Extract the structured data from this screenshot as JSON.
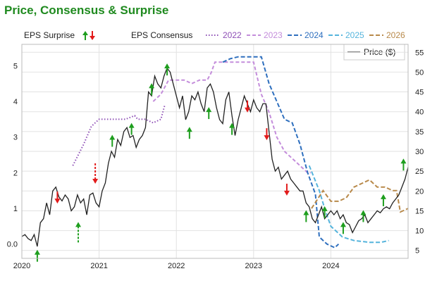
{
  "title": "Price, Consensus & Surprise",
  "legend": {
    "eps_surprise_label": "EPS Surprise",
    "eps_consensus_label": "EPS Consensus",
    "price_label": "Price ($)"
  },
  "colors": {
    "title": "#1f8a1f",
    "price": "#222222",
    "up_arrow": "#1e9e1e",
    "down_arrow": "#e21b1b",
    "y2022": "#8e4fb6",
    "y2023": "#c48ddb",
    "y2024": "#2e6fbe",
    "y2025": "#55b4dc",
    "y2026": "#b8894a"
  },
  "chart_data": {
    "type": "line",
    "title": "Price, Consensus & Surprise",
    "x_ticks": [
      "2020",
      "2021",
      "2022",
      "2023",
      "2024"
    ],
    "xlim": [
      2020.0,
      2025.0
    ],
    "y_left_label": "",
    "y_left_ticks": [
      "0.0",
      "1",
      "2",
      "3",
      "4",
      "5"
    ],
    "y_left_lim": [
      -0.4,
      5.6
    ],
    "y_right_label": "Price ($)",
    "y_right_ticks": [
      "5",
      "10",
      "15",
      "20",
      "25",
      "30",
      "35",
      "40",
      "45",
      "50",
      "55"
    ],
    "y_right_lim": [
      3,
      57
    ],
    "grid": true,
    "legend_position": "top",
    "price": {
      "name": "Price ($)",
      "axis": "right",
      "x": [
        2020.0,
        2020.04,
        2020.08,
        2020.12,
        2020.16,
        2020.2,
        2020.24,
        2020.28,
        2020.32,
        2020.36,
        2020.4,
        2020.44,
        2020.48,
        2020.52,
        2020.56,
        2020.6,
        2020.64,
        2020.68,
        2020.72,
        2020.76,
        2020.8,
        2020.84,
        2020.88,
        2020.92,
        2020.96,
        2021.0,
        2021.04,
        2021.08,
        2021.12,
        2021.16,
        2021.2,
        2021.24,
        2021.28,
        2021.32,
        2021.36,
        2021.4,
        2021.44,
        2021.48,
        2021.52,
        2021.56,
        2021.6,
        2021.64,
        2021.68,
        2021.72,
        2021.76,
        2021.8,
        2021.84,
        2021.88,
        2021.92,
        2021.96,
        2022.0,
        2022.04,
        2022.08,
        2022.12,
        2022.16,
        2022.2,
        2022.24,
        2022.28,
        2022.32,
        2022.36,
        2022.4,
        2022.44,
        2022.48,
        2022.52,
        2022.56,
        2022.6,
        2022.64,
        2022.68,
        2022.72,
        2022.76,
        2022.8,
        2022.84,
        2022.88,
        2022.92,
        2022.96,
        2023.0,
        2023.04,
        2023.08,
        2023.12,
        2023.16,
        2023.2,
        2023.24,
        2023.28,
        2023.32,
        2023.36,
        2023.4,
        2023.44,
        2023.48,
        2023.52,
        2023.56,
        2023.6,
        2023.64,
        2023.68,
        2023.72,
        2023.76,
        2023.8,
        2023.84,
        2023.88,
        2023.92,
        2023.96,
        2024.0,
        2024.04,
        2024.08,
        2024.12,
        2024.16,
        2024.2,
        2024.24,
        2024.28,
        2024.32,
        2024.36,
        2024.4,
        2024.44,
        2024.48,
        2024.52,
        2024.56,
        2024.6,
        2024.64,
        2024.68,
        2024.72,
        2024.76,
        2024.8,
        2024.84,
        2024.88,
        2024.92,
        2024.96,
        2025.0
      ],
      "values": [
        8.5,
        9.0,
        8.0,
        7.5,
        9.0,
        6.0,
        12.0,
        13.0,
        17.0,
        14.0,
        20.0,
        21.0,
        18.5,
        17.5,
        19.0,
        18.0,
        15.0,
        16.0,
        19.0,
        17.0,
        18.0,
        14.0,
        19.0,
        19.5,
        17.0,
        16.0,
        20.0,
        22.0,
        27.0,
        30.0,
        28.5,
        33.0,
        31.5,
        35.0,
        36.0,
        33.5,
        34.0,
        31.0,
        33.0,
        34.0,
        36.0,
        45.0,
        44.0,
        49.0,
        47.0,
        46.0,
        49.0,
        51.0,
        50.0,
        47.0,
        44.0,
        41.0,
        44.0,
        38.0,
        40.0,
        44.0,
        43.0,
        45.0,
        42.0,
        40.0,
        46.0,
        47.0,
        45.0,
        41.0,
        38.0,
        37.0,
        43.0,
        45.0,
        39.0,
        34.0,
        38.0,
        41.0,
        44.0,
        42.0,
        40.0,
        43.0,
        41.0,
        40.0,
        42.0,
        42.0,
        35.0,
        28.0,
        25.0,
        26.0,
        23.0,
        24.0,
        25.0,
        23.0,
        22.0,
        21.0,
        20.0,
        20.0,
        17.0,
        16.0,
        13.0,
        12.0,
        14.0,
        16.0,
        13.0,
        14.0,
        15.0,
        14.0,
        15.0,
        13.0,
        14.0,
        12.0,
        11.5,
        9.5,
        11.0,
        12.5,
        13.0,
        14.0,
        12.0,
        13.0,
        14.0,
        15.0,
        14.5,
        15.5,
        16.0,
        15.5,
        17.0,
        18.0,
        19.0,
        21.0,
        23.0,
        26.0
      ]
    },
    "consensus": [
      {
        "name": "2022",
        "axis": "left",
        "x": [
          2020.66,
          2020.8,
          2020.9,
          2021.0,
          2021.1,
          2021.2,
          2021.34,
          2021.4,
          2021.46,
          2021.5,
          2021.6,
          2021.7,
          2021.8,
          2021.85
        ],
        "values": [
          2.2,
          2.8,
          3.3,
          3.5,
          3.5,
          3.5,
          3.5,
          3.55,
          3.6,
          3.5,
          3.5,
          3.4,
          3.5,
          3.9
        ]
      },
      {
        "name": "2023",
        "axis": "left",
        "x": [
          2021.7,
          2021.8,
          2021.9,
          2022.0,
          2022.1,
          2022.2,
          2022.3,
          2022.4,
          2022.45,
          2022.5,
          2022.6,
          2022.7,
          2022.8,
          2022.9,
          2023.0,
          2023.1,
          2023.2,
          2023.3,
          2023.4,
          2023.5,
          2023.6,
          2023.7,
          2023.74
        ],
        "values": [
          4.0,
          4.2,
          4.6,
          4.6,
          4.6,
          4.5,
          4.6,
          4.6,
          4.8,
          5.1,
          5.1,
          5.1,
          5.1,
          5.1,
          5.1,
          4.2,
          3.7,
          3.0,
          2.6,
          2.4,
          2.2,
          2.0,
          2.0
        ]
      },
      {
        "name": "2024",
        "axis": "left",
        "x": [
          2022.6,
          2022.7,
          2022.8,
          2022.9,
          2023.0,
          2023.1,
          2023.2,
          2023.3,
          2023.4,
          2023.5,
          2023.6,
          2023.7,
          2023.8,
          2023.85,
          2023.95,
          2024.05,
          2024.1
        ],
        "values": [
          5.1,
          5.2,
          5.25,
          5.25,
          5.25,
          5.25,
          4.5,
          4.0,
          3.5,
          3.4,
          2.8,
          2.0,
          1.4,
          0.2,
          0.0,
          -0.1,
          0.0
        ]
      },
      {
        "name": "2025",
        "axis": "left",
        "x": [
          2023.72,
          2023.85,
          2023.92,
          2024.0,
          2024.15,
          2024.3,
          2024.5,
          2024.65,
          2024.75
        ],
        "values": [
          2.2,
          1.5,
          1.0,
          0.5,
          0.2,
          0.1,
          0.05,
          0.05,
          0.1
        ]
      },
      {
        "name": "2026",
        "axis": "left",
        "x": [
          2023.75,
          2023.9,
          2024.0,
          2024.1,
          2024.2,
          2024.3,
          2024.4,
          2024.5,
          2024.6,
          2024.7,
          2024.8,
          2024.85,
          2024.9,
          2025.0
        ],
        "values": [
          1.0,
          1.5,
          1.2,
          1.2,
          1.3,
          1.6,
          1.7,
          1.8,
          1.6,
          1.6,
          1.5,
          1.5,
          0.9,
          1.0
        ]
      }
    ],
    "surprises": [
      {
        "x": 2020.2,
        "dir": "up",
        "kind": "solid",
        "y": 5
      },
      {
        "x": 2020.46,
        "dir": "down",
        "kind": "solid",
        "y": 17
      },
      {
        "x": 2020.73,
        "dir": "up",
        "kind": "dashed",
        "y": 12
      },
      {
        "x": 2020.95,
        "dir": "down",
        "kind": "dashed",
        "y": 22
      },
      {
        "x": 2021.17,
        "dir": "up",
        "kind": "solid",
        "y": 34
      },
      {
        "x": 2021.42,
        "dir": "up",
        "kind": "solid",
        "y": 37
      },
      {
        "x": 2021.68,
        "dir": "up",
        "kind": "solid",
        "y": 47
      },
      {
        "x": 2021.88,
        "dir": "up",
        "kind": "solid",
        "y": 52
      },
      {
        "x": 2022.17,
        "dir": "up",
        "kind": "solid",
        "y": 36
      },
      {
        "x": 2022.42,
        "dir": "up",
        "kind": "solid",
        "y": 41
      },
      {
        "x": 2022.72,
        "dir": "up",
        "kind": "solid",
        "y": 37
      },
      {
        "x": 2022.92,
        "dir": "down",
        "kind": "solid",
        "y": 40
      },
      {
        "x": 2023.17,
        "dir": "down",
        "kind": "solid",
        "y": 33
      },
      {
        "x": 2023.43,
        "dir": "down",
        "kind": "solid",
        "y": 19
      },
      {
        "x": 2023.68,
        "dir": "up",
        "kind": "solid",
        "y": 15
      },
      {
        "x": 2023.92,
        "dir": "up",
        "kind": "solid",
        "y": 16
      },
      {
        "x": 2024.16,
        "dir": "up",
        "kind": "solid",
        "y": 12
      },
      {
        "x": 2024.42,
        "dir": "up",
        "kind": "solid",
        "y": 15
      },
      {
        "x": 2024.68,
        "dir": "up",
        "kind": "solid",
        "y": 19
      },
      {
        "x": 2024.94,
        "dir": "up",
        "kind": "solid",
        "y": 28
      }
    ]
  }
}
